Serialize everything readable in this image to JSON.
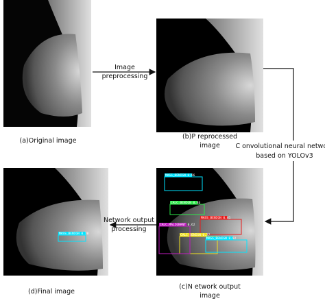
{
  "captions": {
    "a": "(a)Original image",
    "b": [
      "(b)P reprocessed",
      "image"
    ],
    "c": [
      "(c)N etwork output",
      "image"
    ],
    "d": "(d)Final image"
  },
  "arrows": {
    "preprocessing": [
      "Image",
      "preprocessing"
    ],
    "cnn": [
      "C onvolutional neural network",
      "based on YOLOv3"
    ],
    "output": [
      "Network output",
      "processing"
    ]
  },
  "detections": {
    "network_output": [
      "MASS_BENIGN 0.96",
      "CALC_BENIGN 0.86",
      "MASS_BENIGN 0.81",
      "CALC_BENIGN 0.77",
      "MASS_BENIGN 0.92",
      "CALC_MALIGNANT 0.62"
    ],
    "final": [
      "MASS_BENIGN 0.78"
    ]
  }
}
